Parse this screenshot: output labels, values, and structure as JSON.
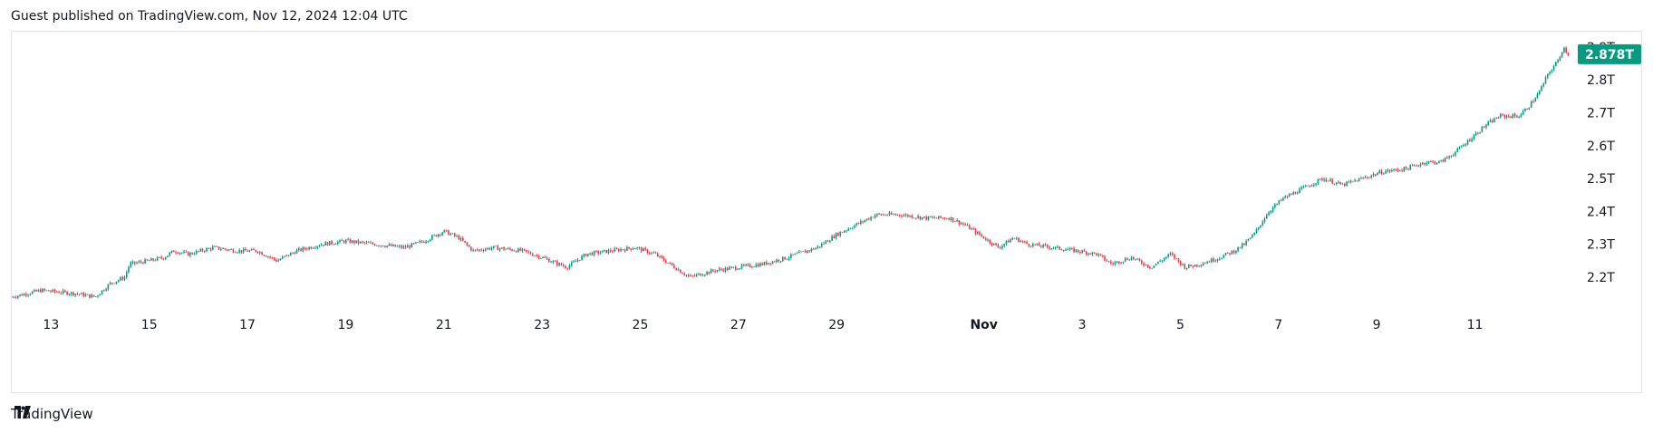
{
  "header": {
    "text": "Guest published on TradingView.com, Nov 12, 2024 12:04 UTC"
  },
  "footer": {
    "brand": "TradingView"
  },
  "chart_data": {
    "type": "candlestick",
    "y_unit": "T",
    "ylim": [
      2.12,
      2.93
    ],
    "y_ticks": [
      2.2,
      2.3,
      2.4,
      2.5,
      2.6,
      2.7,
      2.8,
      2.9
    ],
    "y_tick_labels": [
      "2.2T",
      "2.3T",
      "2.4T",
      "2.5T",
      "2.6T",
      "2.7T",
      "2.8T",
      "2.9T"
    ],
    "x_ticks": [
      {
        "label": "13",
        "day": 1,
        "bold": false
      },
      {
        "label": "15",
        "day": 3,
        "bold": false
      },
      {
        "label": "17",
        "day": 5,
        "bold": false
      },
      {
        "label": "19",
        "day": 7,
        "bold": false
      },
      {
        "label": "21",
        "day": 9,
        "bold": false
      },
      {
        "label": "23",
        "day": 11,
        "bold": false
      },
      {
        "label": "25",
        "day": 13,
        "bold": false
      },
      {
        "label": "27",
        "day": 15,
        "bold": false
      },
      {
        "label": "29",
        "day": 17,
        "bold": false
      },
      {
        "label": "Nov",
        "day": 20,
        "bold": true
      },
      {
        "label": "3",
        "day": 22,
        "bold": false
      },
      {
        "label": "5",
        "day": 24,
        "bold": false
      },
      {
        "label": "7",
        "day": 26,
        "bold": false
      },
      {
        "label": "9",
        "day": 28,
        "bold": false
      },
      {
        "label": "11",
        "day": 30,
        "bold": false
      }
    ],
    "xlim": [
      0.2,
      31.8
    ],
    "price_path": [
      [
        0.2,
        2.14
      ],
      [
        0.8,
        2.16
      ],
      [
        1.5,
        2.15
      ],
      [
        1.9,
        2.14
      ],
      [
        2.2,
        2.18
      ],
      [
        2.5,
        2.2
      ],
      [
        2.6,
        2.24
      ],
      [
        3.0,
        2.25
      ],
      [
        3.3,
        2.26
      ],
      [
        3.5,
        2.28
      ],
      [
        3.8,
        2.27
      ],
      [
        4.3,
        2.29
      ],
      [
        4.8,
        2.28
      ],
      [
        5.2,
        2.28
      ],
      [
        5.6,
        2.25
      ],
      [
        6.0,
        2.28
      ],
      [
        6.5,
        2.3
      ],
      [
        7.0,
        2.31
      ],
      [
        7.6,
        2.3
      ],
      [
        8.2,
        2.29
      ],
      [
        8.6,
        2.31
      ],
      [
        9.0,
        2.34
      ],
      [
        9.3,
        2.32
      ],
      [
        9.6,
        2.28
      ],
      [
        10.0,
        2.29
      ],
      [
        10.6,
        2.28
      ],
      [
        11.0,
        2.26
      ],
      [
        11.5,
        2.23
      ],
      [
        11.9,
        2.27
      ],
      [
        12.4,
        2.28
      ],
      [
        12.9,
        2.29
      ],
      [
        13.3,
        2.27
      ],
      [
        13.6,
        2.24
      ],
      [
        14.0,
        2.2
      ],
      [
        14.5,
        2.22
      ],
      [
        15.0,
        2.23
      ],
      [
        15.5,
        2.24
      ],
      [
        16.0,
        2.26
      ],
      [
        16.6,
        2.29
      ],
      [
        17.0,
        2.33
      ],
      [
        17.4,
        2.36
      ],
      [
        17.8,
        2.39
      ],
      [
        18.3,
        2.39
      ],
      [
        18.8,
        2.38
      ],
      [
        19.3,
        2.38
      ],
      [
        19.6,
        2.36
      ],
      [
        20.0,
        2.32
      ],
      [
        20.3,
        2.29
      ],
      [
        20.6,
        2.32
      ],
      [
        20.9,
        2.3
      ],
      [
        21.4,
        2.29
      ],
      [
        21.9,
        2.28
      ],
      [
        22.3,
        2.27
      ],
      [
        22.6,
        2.24
      ],
      [
        23.0,
        2.26
      ],
      [
        23.4,
        2.23
      ],
      [
        23.8,
        2.27
      ],
      [
        24.1,
        2.23
      ],
      [
        24.4,
        2.24
      ],
      [
        24.8,
        2.26
      ],
      [
        25.1,
        2.28
      ],
      [
        25.3,
        2.3
      ],
      [
        25.5,
        2.33
      ],
      [
        25.8,
        2.4
      ],
      [
        26.1,
        2.44
      ],
      [
        26.5,
        2.47
      ],
      [
        26.9,
        2.5
      ],
      [
        27.3,
        2.48
      ],
      [
        27.7,
        2.5
      ],
      [
        28.1,
        2.52
      ],
      [
        28.6,
        2.53
      ],
      [
        29.0,
        2.55
      ],
      [
        29.3,
        2.55
      ],
      [
        29.6,
        2.58
      ],
      [
        29.9,
        2.62
      ],
      [
        30.2,
        2.66
      ],
      [
        30.5,
        2.69
      ],
      [
        30.9,
        2.69
      ],
      [
        31.1,
        2.72
      ],
      [
        31.3,
        2.76
      ],
      [
        31.5,
        2.82
      ],
      [
        31.7,
        2.86
      ],
      [
        31.8,
        2.9
      ],
      [
        31.9,
        2.878
      ]
    ],
    "last_price": 2.878,
    "last_price_label": "2.878T",
    "colors": {
      "up": "#089981",
      "down": "#f23645",
      "label_bg": "#089981",
      "axis_text": "#131722",
      "frame": "#e0e3eb"
    }
  }
}
